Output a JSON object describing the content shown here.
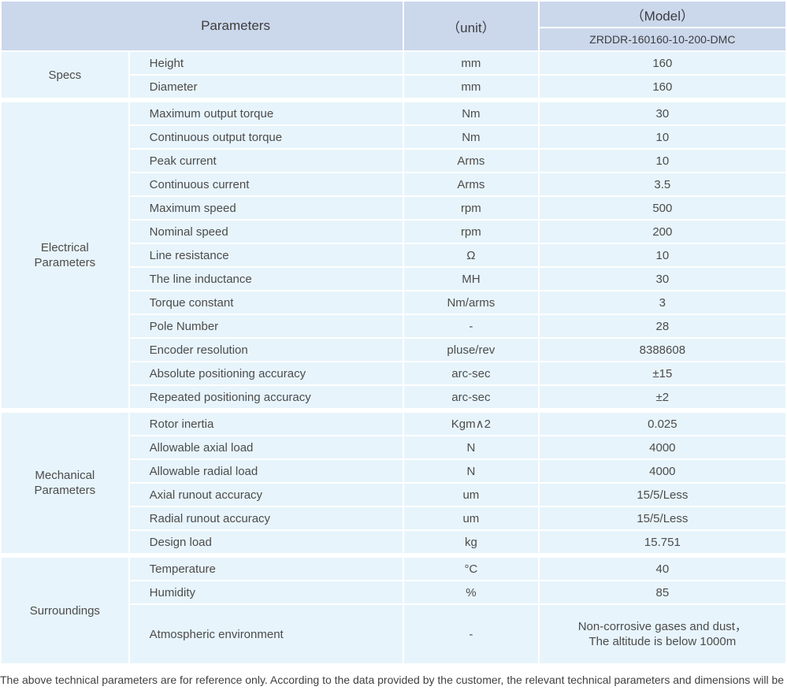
{
  "colors": {
    "header_bg": "#cbd7eb",
    "cell_bg": "#e7f4fb",
    "text": "#4c4c4c",
    "header_text": "#3d3d3d"
  },
  "table": {
    "header": {
      "parameters": "Parameters",
      "unit": "（unit）",
      "model": "（Model）",
      "model_number": "ZRDDR-160160-10-200-DMC"
    },
    "groups": [
      {
        "label": "Specs",
        "rows": [
          {
            "param": "Height",
            "unit": "mm",
            "value": "160"
          },
          {
            "param": "Diameter",
            "unit": "mm",
            "value": "160"
          }
        ]
      },
      {
        "label": "Electrical Parameters",
        "rows": [
          {
            "param": "Maximum output torque",
            "unit": "Nm",
            "value": "30"
          },
          {
            "param": "Continuous output torque",
            "unit": "Nm",
            "value": "10"
          },
          {
            "param": "Peak current",
            "unit": "Arms",
            "value": "10"
          },
          {
            "param": "Continuous current",
            "unit": "Arms",
            "value": "3.5"
          },
          {
            "param": "Maximum speed",
            "unit": "rpm",
            "value": "500"
          },
          {
            "param": "Nominal speed",
            "unit": "rpm",
            "value": "200"
          },
          {
            "param": "Line resistance",
            "unit": "Ω",
            "value": "10"
          },
          {
            "param": "The line inductance",
            "unit": "MH",
            "value": "30"
          },
          {
            "param": "Torque constant",
            "unit": "Nm/arms",
            "value": "3"
          },
          {
            "param": "Pole Number",
            "unit": "-",
            "value": "28"
          },
          {
            "param": "Encoder resolution",
            "unit": "pluse/rev",
            "value": "8388608"
          },
          {
            "param": "Absolute positioning accuracy",
            "unit": "arc-sec",
            "value": "±15"
          },
          {
            "param": "Repeated positioning accuracy",
            "unit": "arc-sec",
            "value": "±2"
          }
        ]
      },
      {
        "label": "Mechanical Parameters",
        "rows": [
          {
            "param": "Rotor inertia",
            "unit": "Kgm∧2",
            "value": "0.025"
          },
          {
            "param": "Allowable axial load",
            "unit": "N",
            "value": "4000"
          },
          {
            "param": "Allowable radial load",
            "unit": "N",
            "value": "4000"
          },
          {
            "param": "Axial runout accuracy",
            "unit": "um",
            "value": "15/5/Less"
          },
          {
            "param": "Radial runout accuracy",
            "unit": "um",
            "value": "15/5/Less"
          },
          {
            "param": "Design load",
            "unit": "kg",
            "value": "15.751"
          }
        ]
      },
      {
        "label": "Surroundings",
        "rows": [
          {
            "param": "Temperature",
            "unit": "°C",
            "value": "40"
          },
          {
            "param": "Humidity",
            "unit": "%",
            "value": "85"
          },
          {
            "param": "Atmospheric environment",
            "unit": "-",
            "value_lines": [
              "Non-corrosive gases and dust，",
              "The altitude is below 1000m"
            ]
          }
        ]
      }
    ],
    "footnote": "The above technical parameters are for reference only. According to the data provided by the customer, the relevant technical parameters and dimensions will be issued."
  }
}
